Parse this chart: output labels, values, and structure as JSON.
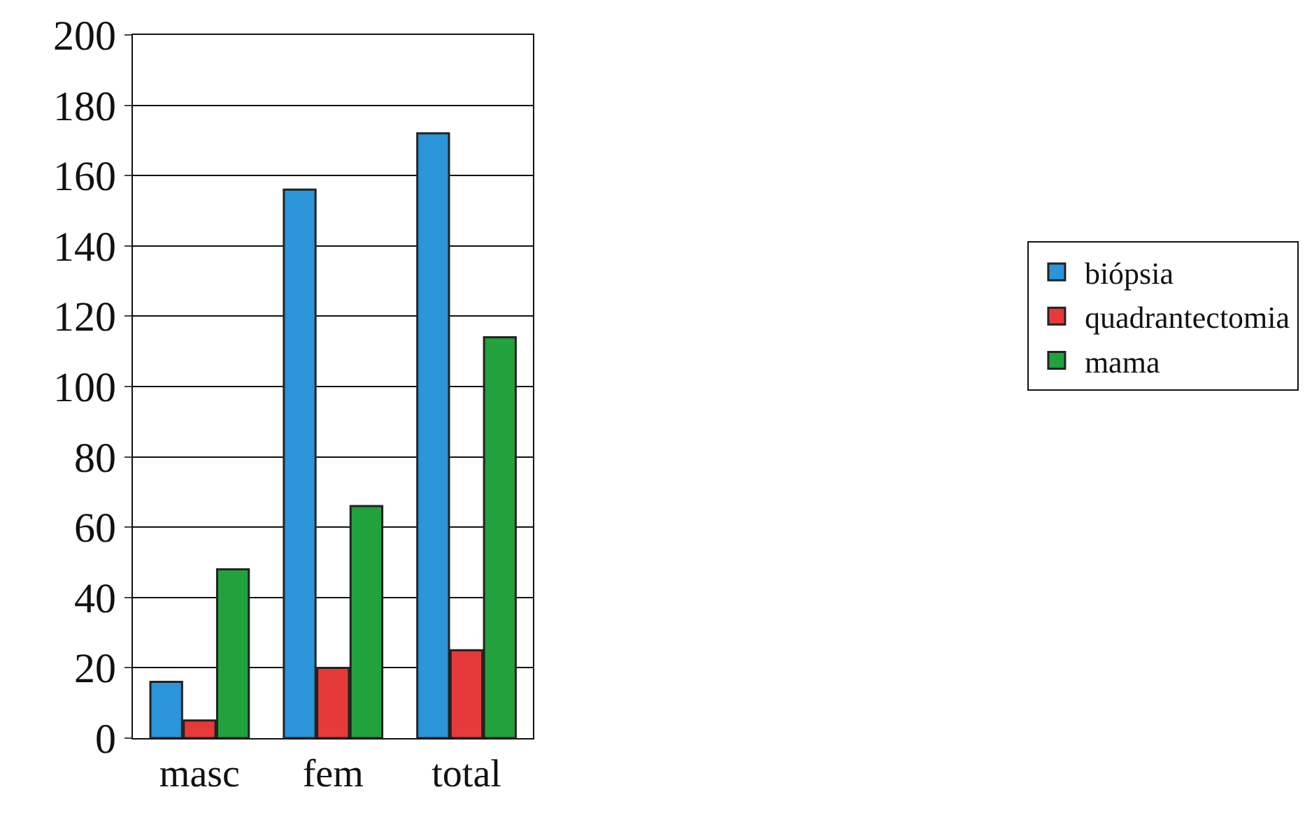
{
  "chart_data": {
    "type": "bar",
    "categories": [
      "masc",
      "fem",
      "total"
    ],
    "series": [
      {
        "name": "biópsia",
        "color": "#2a95d8",
        "values": [
          16,
          156,
          172
        ]
      },
      {
        "name": "quadrantectomia",
        "color": "#e63a3a",
        "values": [
          5,
          20,
          25
        ]
      },
      {
        "name": "mama",
        "color": "#22a23c",
        "values": [
          48,
          66,
          114
        ]
      }
    ],
    "ylim": [
      0,
      200
    ],
    "yticks": [
      0,
      20,
      40,
      60,
      80,
      100,
      120,
      140,
      160,
      180,
      200
    ],
    "grid": "y",
    "legend": "right"
  }
}
